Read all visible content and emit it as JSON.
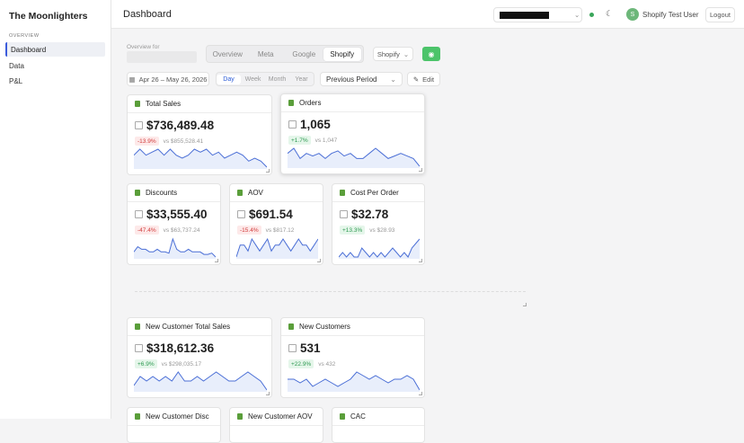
{
  "sidebar": {
    "brand": "The Moonlighters",
    "section": "OVERVIEW",
    "items": [
      "Dashboard",
      "Data",
      "P&L"
    ]
  },
  "header": {
    "title": "Dashboard",
    "avatar": "S",
    "user": "Shopify Test User",
    "logout": "Logout"
  },
  "controls": {
    "overview_label": "Overview for",
    "tabs": [
      "Overview",
      "Meta",
      "Google",
      "Shopify"
    ],
    "source": "Shopify",
    "date_range": "Apr 26 – May 26, 2026",
    "granularity": [
      "Day",
      "Week",
      "Month",
      "Year"
    ],
    "compare": "Previous Period",
    "edit": "Edit"
  },
  "cards": [
    {
      "title": "Total Sales",
      "value": "$736,489.48",
      "change": "-13.9%",
      "compare": "vs $855,528.41",
      "spark": [
        5,
        6,
        5,
        5.5,
        6,
        5,
        6,
        5,
        4.5,
        5,
        6,
        5.5,
        6,
        5,
        5.5,
        4.5,
        5,
        5.5,
        5,
        4,
        4.5,
        4,
        3
      ]
    },
    {
      "title": "Orders",
      "value": "1,065",
      "change": "+1.7%",
      "compare": "vs 1,047",
      "spark": [
        6,
        7,
        5,
        6,
        5.5,
        6,
        5,
        6,
        6.5,
        5.5,
        6,
        5,
        5,
        6,
        7,
        6,
        5,
        5.5,
        6,
        5.5,
        5,
        3.5
      ]
    },
    {
      "title": "Discounts",
      "value": "$33,555.40",
      "change": "-47.4%",
      "compare": "vs $63,737.24",
      "spark": [
        3,
        5,
        4,
        4,
        3,
        3,
        4,
        3,
        3,
        2.5,
        8,
        4,
        3,
        3,
        4,
        3,
        3,
        3,
        2,
        2,
        2.5,
        1
      ]
    },
    {
      "title": "AOV",
      "value": "$691.54",
      "change": "-15.4%",
      "compare": "vs $817.12",
      "spark": [
        3,
        5,
        5,
        4,
        6,
        5,
        4,
        5,
        6,
        4,
        5,
        5,
        6,
        5,
        4,
        5,
        6,
        5,
        5,
        4,
        5,
        6
      ]
    },
    {
      "title": "Cost Per Order",
      "value": "$32.78",
      "change": "+13.3%",
      "compare": "vs $28.93",
      "spark": [
        3,
        4,
        3,
        4,
        3,
        3,
        5,
        4,
        3,
        4,
        3,
        4,
        3,
        4,
        5,
        4,
        3,
        4,
        3,
        5,
        6,
        7
      ]
    },
    {
      "title": "New Customer Total Sales",
      "value": "$318,612.36",
      "change": "+6.9%",
      "compare": "vs $298,035.17",
      "spark": [
        4,
        6,
        5,
        6,
        5,
        6,
        5,
        7,
        5,
        5,
        6,
        5,
        6,
        7,
        6,
        5,
        5,
        6,
        7,
        6,
        5,
        3
      ]
    },
    {
      "title": "New Customers",
      "value": "531",
      "change": "+22.9%",
      "compare": "vs 432",
      "spark": [
        6,
        6,
        5,
        6,
        4,
        5,
        6,
        5,
        4,
        5,
        6,
        8,
        7,
        6,
        7,
        6,
        5,
        6,
        6,
        7,
        6,
        3
      ]
    },
    {
      "title": "New Customer Disc"
    },
    {
      "title": "New Customer AOV"
    },
    {
      "title": "CAC"
    }
  ]
}
